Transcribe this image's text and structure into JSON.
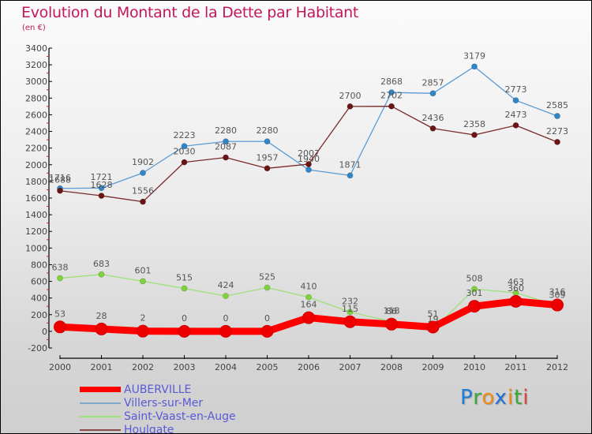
{
  "chart_data": {
    "type": "line",
    "title": "Evolution du Montant de la Dette par Habitant",
    "subtitle": "(en €)",
    "xlabel": "",
    "ylabel": "",
    "x": [
      "2000",
      "2001",
      "2002",
      "2003",
      "2004",
      "2005",
      "2006",
      "2007",
      "2008",
      "2009",
      "2010",
      "2011",
      "2012"
    ],
    "ylim": [
      -200,
      3400
    ],
    "yticks": [
      -200,
      0,
      200,
      400,
      600,
      800,
      1000,
      1200,
      1400,
      1600,
      1800,
      2000,
      2200,
      2400,
      2600,
      2800,
      3000,
      3200,
      3400
    ],
    "grid": false,
    "legend_position": "bottom-left",
    "series": [
      {
        "name": "Villers-sur-Mer",
        "color": "#5b9bd5",
        "marker": "#2e86c9",
        "values": [
          1716,
          1721,
          1902,
          2223,
          2280,
          2280,
          1940,
          1871,
          2868,
          2857,
          3179,
          2773,
          2585
        ]
      },
      {
        "name": "Houlgate",
        "color": "#7a2a2a",
        "marker": "#6b1414",
        "values": [
          1688,
          1628,
          1556,
          2030,
          2087,
          1957,
          2007,
          2700,
          2702,
          2436,
          2358,
          2473,
          2273
        ]
      },
      {
        "name": "Saint-Vaast-en-Auge",
        "color": "#9ee07a",
        "marker": "#7ed33a",
        "values": [
          638,
          683,
          601,
          515,
          424,
          525,
          410,
          232,
          118,
          19,
          508,
          463,
          309
        ]
      },
      {
        "name": "AUBERVILLE",
        "color": "#ff0000",
        "marker": "#ee0000",
        "values": [
          53,
          28,
          2,
          0,
          0,
          0,
          164,
          115,
          86,
          51,
          301,
          360,
          316
        ]
      }
    ]
  },
  "legend": [
    {
      "label": "AUBERVILLE",
      "color": "#ff0000"
    },
    {
      "label": "Villers-sur-Mer",
      "color": "#7fa9c8"
    },
    {
      "label": "Saint-Vaast-en-Auge",
      "color": "#9ee07a"
    },
    {
      "label": "Houlgate",
      "color": "#8a4a4a"
    }
  ],
  "logo": {
    "letters": [
      {
        "ch": "P",
        "color": "#1e7fd6"
      },
      {
        "ch": "r",
        "color": "#3aa83a"
      },
      {
        "ch": "o",
        "color": "#f08a12"
      },
      {
        "ch": "x",
        "color": "#1e6fd6"
      },
      {
        "ch": "i",
        "color": "#f08a12"
      },
      {
        "ch": "t",
        "color": "#3aa83a"
      },
      {
        "ch": "i",
        "color": "#e04040"
      }
    ]
  }
}
